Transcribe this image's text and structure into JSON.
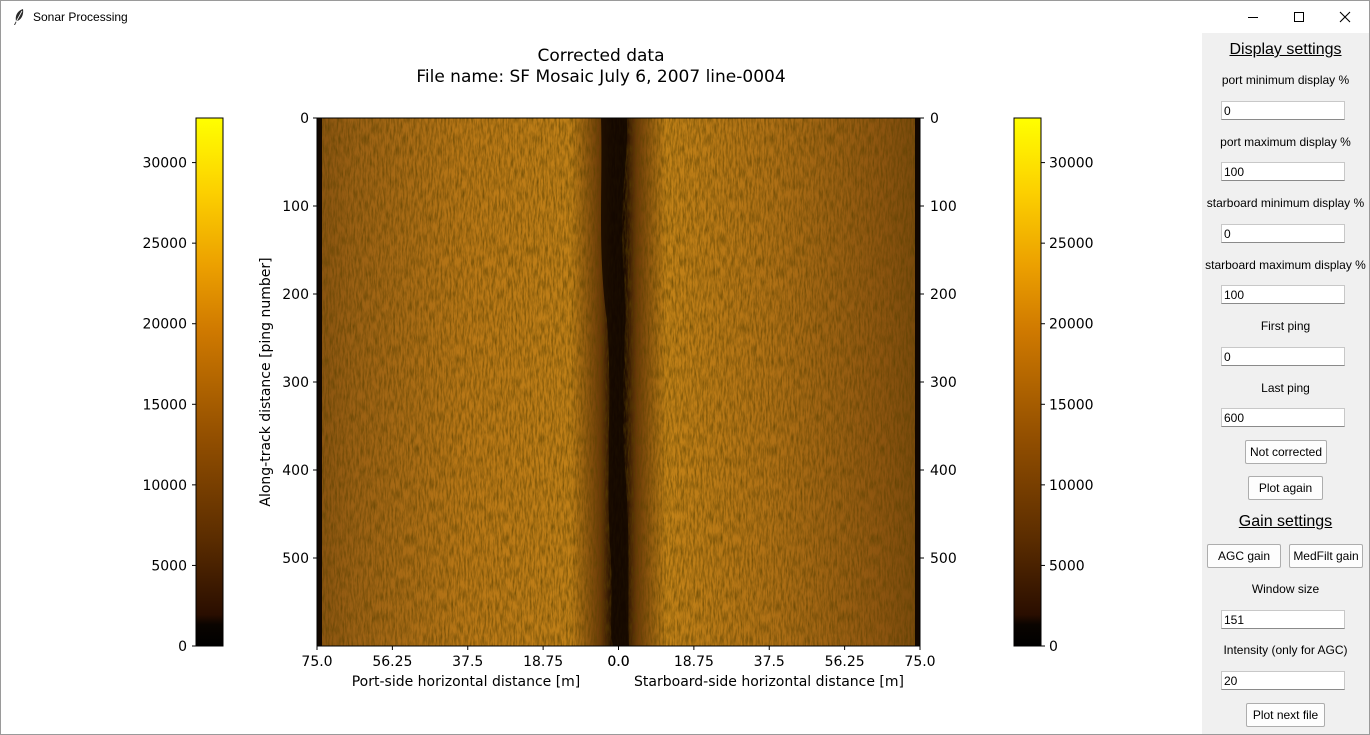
{
  "window": {
    "title": "Sonar Processing",
    "controls": [
      "minimize-icon",
      "maximize-icon",
      "close-icon"
    ]
  },
  "figure": {
    "title_line1": "Corrected data",
    "title_line2": "File name: SF Mosaic July 6, 2007 line-0004",
    "ylabel": "Along-track distance [ping number]",
    "xlabel_port": "Port-side horizontal distance [m]",
    "xlabel_starboard": "Starboard-side horizontal distance [m]",
    "colormap": "afmhot",
    "colors": {
      "low": "#000000",
      "mid": "#a85c00",
      "high": "#ffff00"
    }
  },
  "chart_data": {
    "type": "heatmap",
    "x_port_ticks": [
      "75.0",
      "56.25",
      "37.5",
      "18.75",
      "0.0"
    ],
    "x_starboard_ticks": [
      "0.0",
      "18.75",
      "37.5",
      "56.25",
      "75.0"
    ],
    "y_ticks": [
      "0",
      "100",
      "200",
      "300",
      "400",
      "500"
    ],
    "ylim": [
      600,
      0
    ],
    "xlim_port": [
      75.0,
      0.0
    ],
    "xlim_starboard": [
      0.0,
      75.0
    ],
    "colorbar_left_ticks": [
      "0",
      "5000",
      "10000",
      "15000",
      "20000",
      "25000",
      "30000"
    ],
    "colorbar_right_ticks": [
      "0",
      "5000",
      "10000",
      "15000",
      "20000",
      "25000",
      "30000"
    ],
    "colorbar_range": [
      0,
      32767
    ]
  },
  "display_settings": {
    "title": "Display settings",
    "port_min_label": "port minimum display %",
    "port_min_value": "0",
    "port_max_label": "port maximum display %",
    "port_max_value": "100",
    "stbd_min_label": "starboard minimum display %",
    "stbd_min_value": "0",
    "stbd_max_label": "starboard maximum display %",
    "stbd_max_value": "100",
    "first_ping_label": "First ping",
    "first_ping_value": "0",
    "last_ping_label": "Last ping",
    "last_ping_value": "600",
    "not_corrected_button": "Not corrected",
    "plot_again_button": "Plot again"
  },
  "gain_settings": {
    "title": "Gain settings",
    "agc_button": "AGC gain",
    "medfilt_button": "MedFilt gain",
    "window_size_label": "Window size",
    "window_size_value": "151",
    "intensity_label": "Intensity (only for AGC)",
    "intensity_value": "20",
    "plot_next_button": "Plot next file"
  }
}
